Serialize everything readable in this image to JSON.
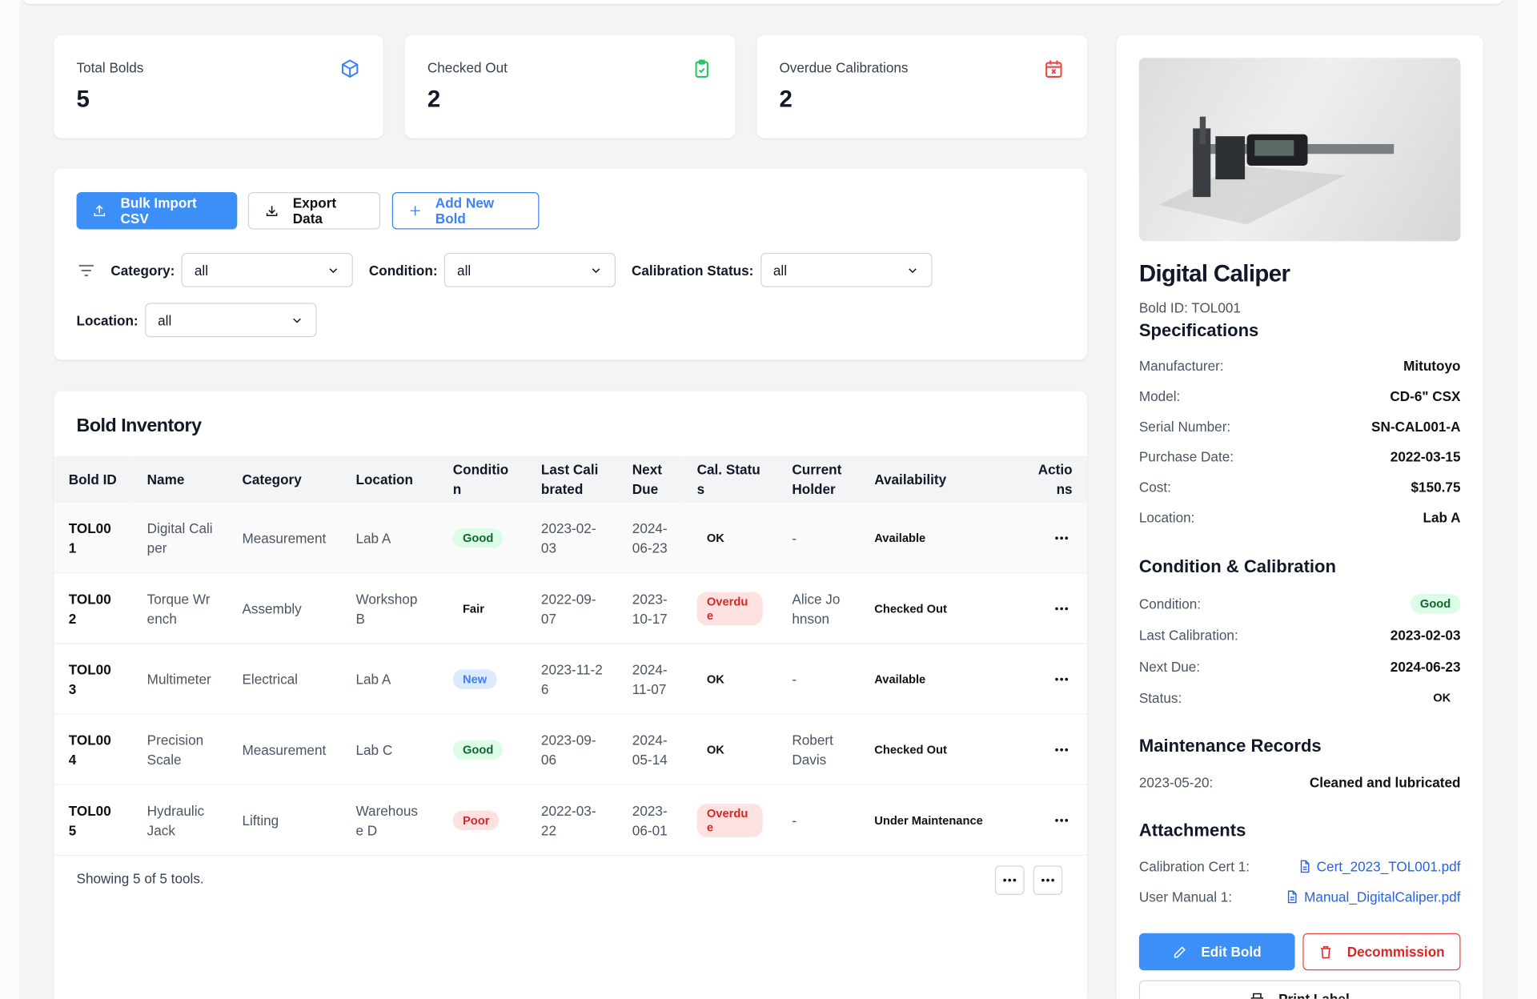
{
  "stats": [
    {
      "label": "Total Bolds",
      "value": 5
    },
    {
      "label": "Checked Out",
      "value": 2
    },
    {
      "label": "Overdue Calibrations",
      "value": 2
    }
  ],
  "toolbar": {
    "bulk_import": "Bulk Import CSV",
    "export": "Export Data",
    "add_new": "Add New Bold"
  },
  "filters": [
    {
      "label": "Category:",
      "value": "all"
    },
    {
      "label": "Condition:",
      "value": "all"
    },
    {
      "label": "Calibration Status:",
      "value": "all"
    },
    {
      "label": "Location:",
      "value": "all"
    }
  ],
  "inventory": {
    "title": "Bold Inventory",
    "columns": [
      "Bold ID",
      "Name",
      "Category",
      "Location",
      "Condition",
      "Last Calibrated",
      "Next Due",
      "Cal. Status",
      "Current Holder",
      "Availability",
      "Actions"
    ],
    "rows": [
      {
        "id": "TOL001",
        "name": "Digital Caliper",
        "category": "Measurement",
        "location": "Lab A",
        "condition": "Good",
        "condition_color": "green",
        "last_calibrated": "2023-02-03",
        "next_due": "2024-06-23",
        "cal_status": "OK",
        "cal_status_color": "plain",
        "holder": "-",
        "availability": "Available"
      },
      {
        "id": "TOL002",
        "name": "Torque Wrench",
        "category": "Assembly",
        "location": "Workshop B",
        "condition": "Fair",
        "condition_color": "plain",
        "last_calibrated": "2022-09-07",
        "next_due": "2023-10-17",
        "cal_status": "Overdue",
        "cal_status_color": "red",
        "holder": "Alice Johnson",
        "availability": "Checked Out"
      },
      {
        "id": "TOL003",
        "name": "Multimeter",
        "category": "Electrical",
        "location": "Lab A",
        "condition": "New",
        "condition_color": "blue",
        "last_calibrated": "2023-11-26",
        "next_due": "2024-11-07",
        "cal_status": "OK",
        "cal_status_color": "plain",
        "holder": "-",
        "availability": "Available"
      },
      {
        "id": "TOL004",
        "name": "Precision Scale",
        "category": "Measurement",
        "location": "Lab C",
        "condition": "Good",
        "condition_color": "green",
        "last_calibrated": "2023-09-06",
        "next_due": "2024-05-14",
        "cal_status": "OK",
        "cal_status_color": "plain",
        "holder": "Robert Davis",
        "availability": "Checked Out"
      },
      {
        "id": "TOL005",
        "name": "Hydraulic Jack",
        "category": "Lifting",
        "location": "Warehouse D",
        "condition": "Poor",
        "condition_color": "red",
        "last_calibrated": "2022-03-22",
        "next_due": "2023-06-01",
        "cal_status": "Overdue",
        "cal_status_color": "red",
        "holder": "-",
        "availability": "Under Maintenance"
      }
    ],
    "footer": "Showing 5 of 5 tools."
  },
  "detail": {
    "title": "Digital Caliper",
    "id_line": "Bold ID: TOL001",
    "specs_title": "Specifications",
    "specs": [
      {
        "label": "Manufacturer:",
        "value": "Mitutoyo"
      },
      {
        "label": "Model:",
        "value": "CD-6\" CSX"
      },
      {
        "label": "Serial Number:",
        "value": "SN-CAL001-A"
      },
      {
        "label": "Purchase Date:",
        "value": "2022-03-15"
      },
      {
        "label": "Cost:",
        "value": "$150.75"
      },
      {
        "label": "Location:",
        "value": "Lab A"
      }
    ],
    "condition_title": "Condition & Calibration",
    "condition": [
      {
        "label": "Condition:",
        "value": "Good",
        "color": "green"
      },
      {
        "label": "Last Calibration:",
        "value": "2023-02-03",
        "color": "plain"
      },
      {
        "label": "Next Due:",
        "value": "2024-06-23",
        "color": "plain"
      },
      {
        "label": "Status:",
        "value": "OK",
        "color": "small"
      }
    ],
    "maintenance_title": "Maintenance Records",
    "maintenance": [
      {
        "label": "2023-05-20:",
        "value": "Cleaned and lubricated"
      }
    ],
    "attachments_title": "Attachments",
    "attachments": [
      {
        "label": "Calibration Cert 1:",
        "value": "Cert_2023_TOL001.pdf"
      },
      {
        "label": "User Manual 1:",
        "value": "Manual_DigitalCaliper.pdf"
      }
    ],
    "buttons": {
      "edit": "Edit Bold",
      "decommission": "Decommission",
      "print": "Print Label"
    }
  }
}
